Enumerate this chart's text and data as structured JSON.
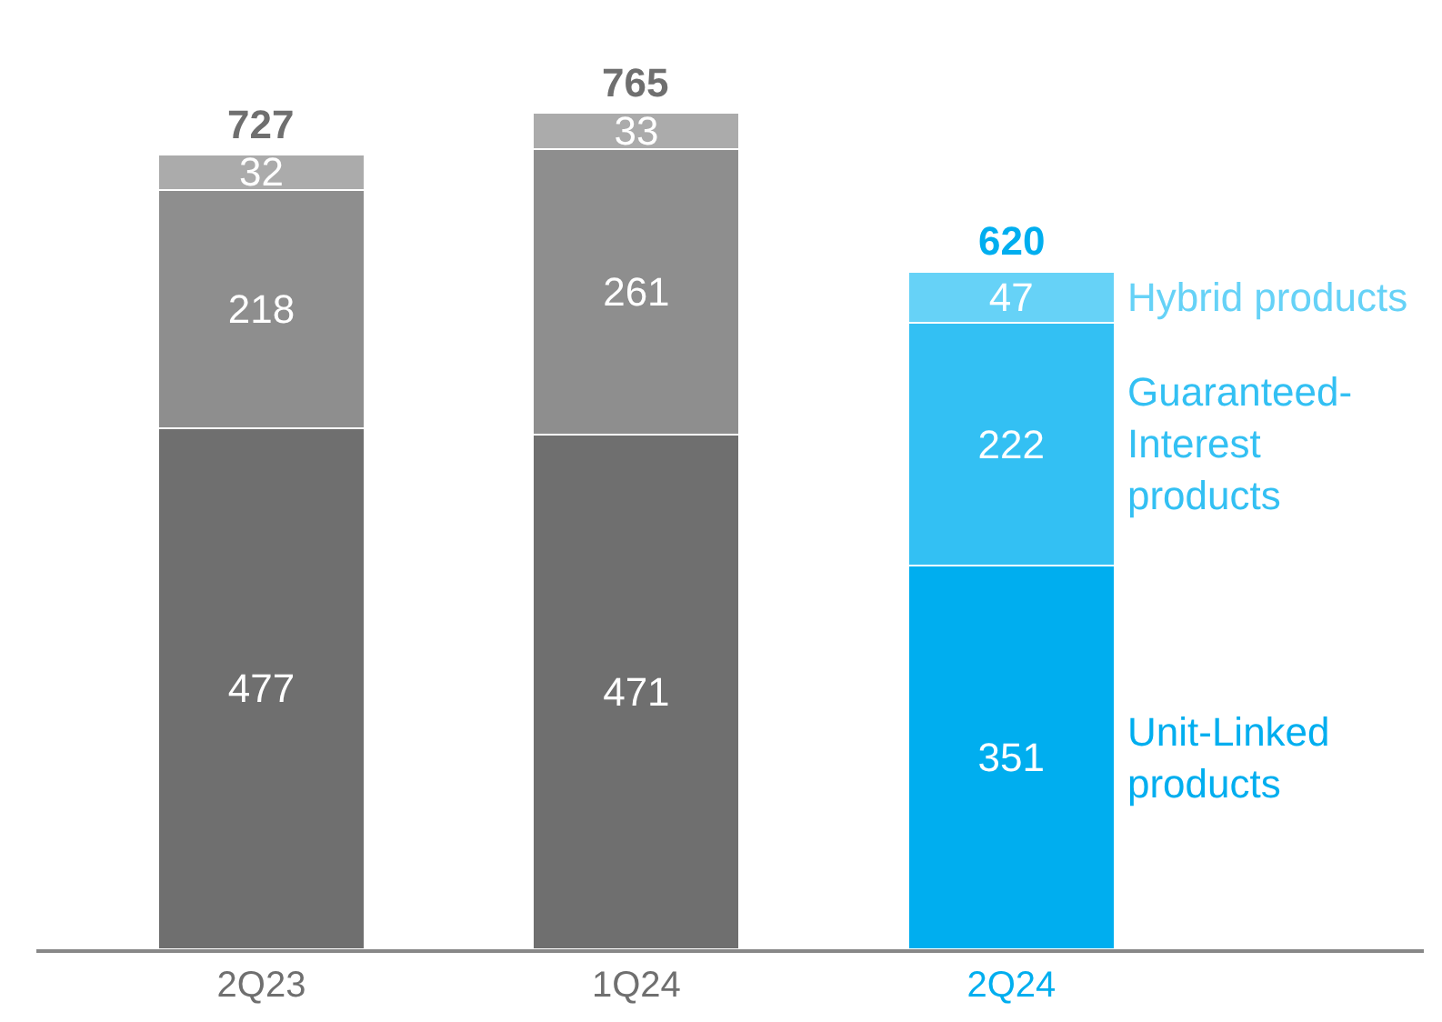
{
  "chart_data": {
    "type": "bar",
    "stacked": true,
    "data_labels": true,
    "legend": false,
    "categories": [
      "2Q23",
      "1Q24",
      "2Q24"
    ],
    "series": [
      {
        "name": "Unit-Linked products",
        "colors": [
          "#6f6f6f",
          "#6f6f6f",
          "#00aeef"
        ],
        "values": [
          477,
          471,
          351
        ]
      },
      {
        "name": "Guaranteed-Interest products",
        "colors": [
          "#8e8e8e",
          "#8e8e8e",
          "#33c0f3"
        ],
        "values": [
          218,
          261,
          222
        ]
      },
      {
        "name": "Hybrid products",
        "colors": [
          "#ababab",
          "#ababab",
          "#66d2f7"
        ],
        "values": [
          32,
          33,
          47
        ]
      }
    ],
    "totals": [
      "727",
      "765",
      "620"
    ]
  }
}
